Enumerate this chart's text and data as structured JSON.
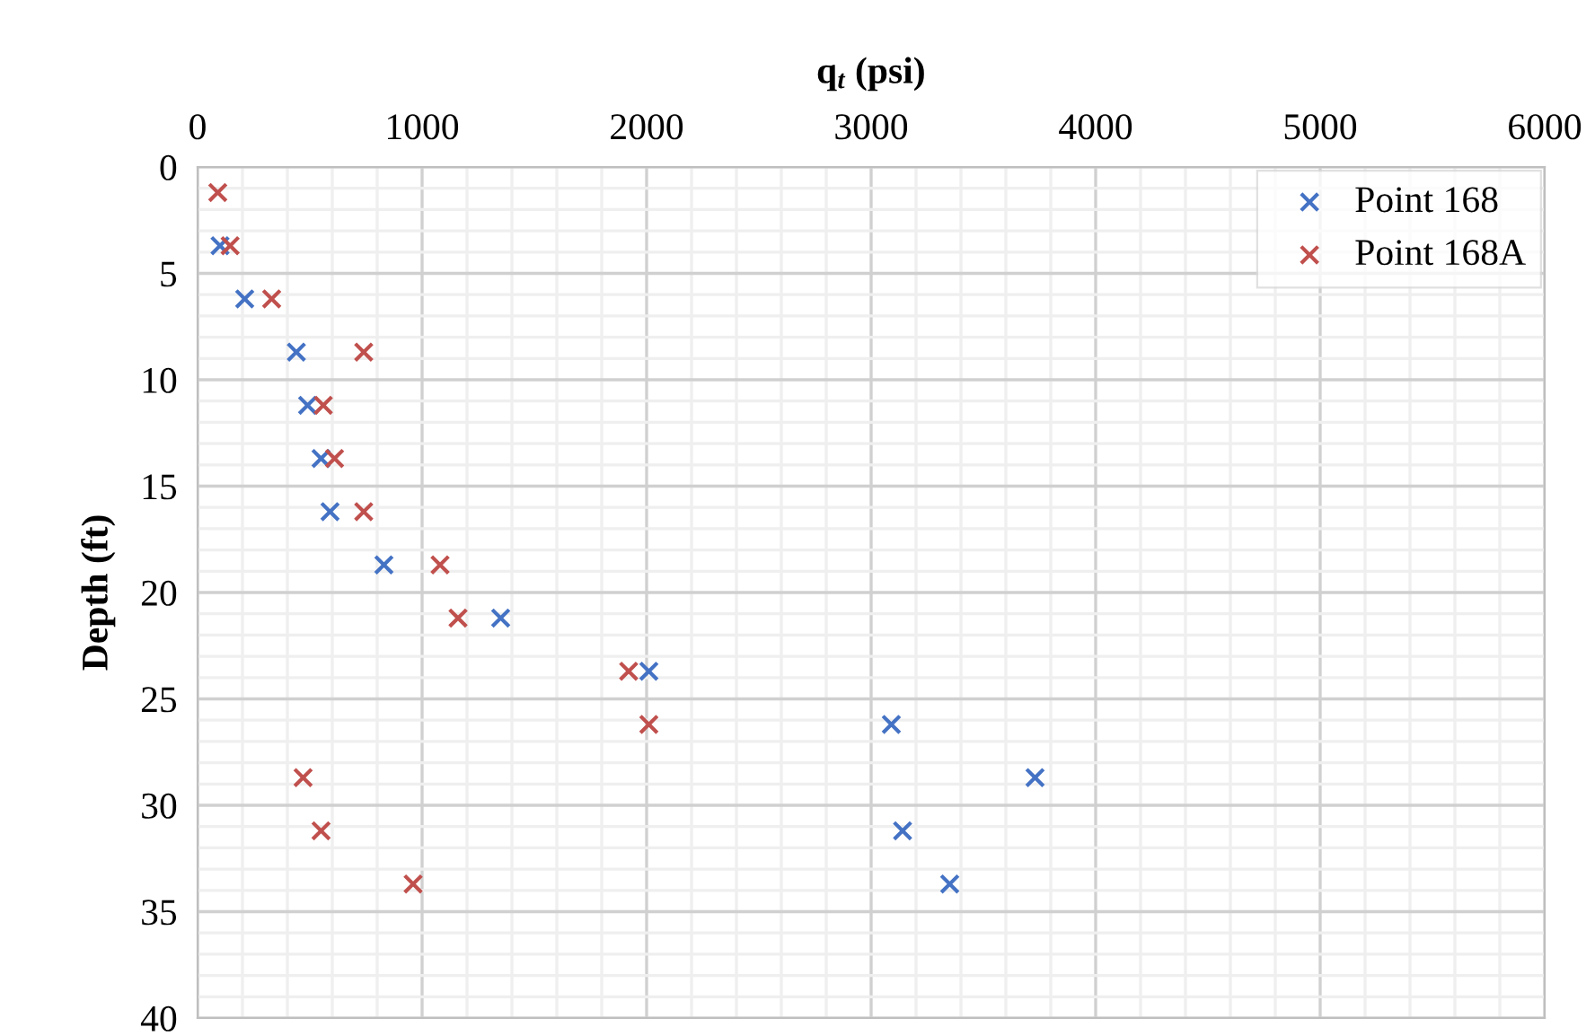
{
  "chart_data": {
    "type": "scatter",
    "xlabel": "q$_{t}$ (psi)",
    "ylabel": "Depth (ft)",
    "xlim": [
      0,
      6000
    ],
    "xticks": [
      0,
      1000,
      2000,
      3000,
      4000,
      5000,
      6000
    ],
    "ylim": [
      40,
      0
    ],
    "yticks": [
      0,
      5,
      10,
      15,
      20,
      25,
      30,
      35,
      40
    ],
    "grid": true,
    "legend": "top right",
    "marker": "cross",
    "series": [
      {
        "name": "Point 168",
        "color": "#4472c4",
        "x": [
          null,
          100,
          210,
          440,
          490,
          550,
          590,
          830,
          1350,
          2010,
          3090,
          3730,
          3140,
          3350
        ],
        "values": [
          null,
          3.7,
          6.2,
          8.7,
          11.2,
          13.7,
          16.2,
          18.7,
          21.2,
          23.7,
          26.2,
          28.7,
          31.2,
          33.7
        ]
      },
      {
        "name": "Point 168A",
        "color": "#c0504d",
        "x": [
          90,
          145,
          330,
          740,
          560,
          610,
          740,
          1080,
          1160,
          1920,
          2010,
          470,
          550,
          960
        ],
        "values": [
          1.2,
          3.7,
          6.2,
          8.7,
          11.2,
          13.7,
          16.2,
          18.7,
          21.2,
          23.7,
          26.2,
          28.7,
          31.2,
          33.7
        ]
      }
    ]
  }
}
